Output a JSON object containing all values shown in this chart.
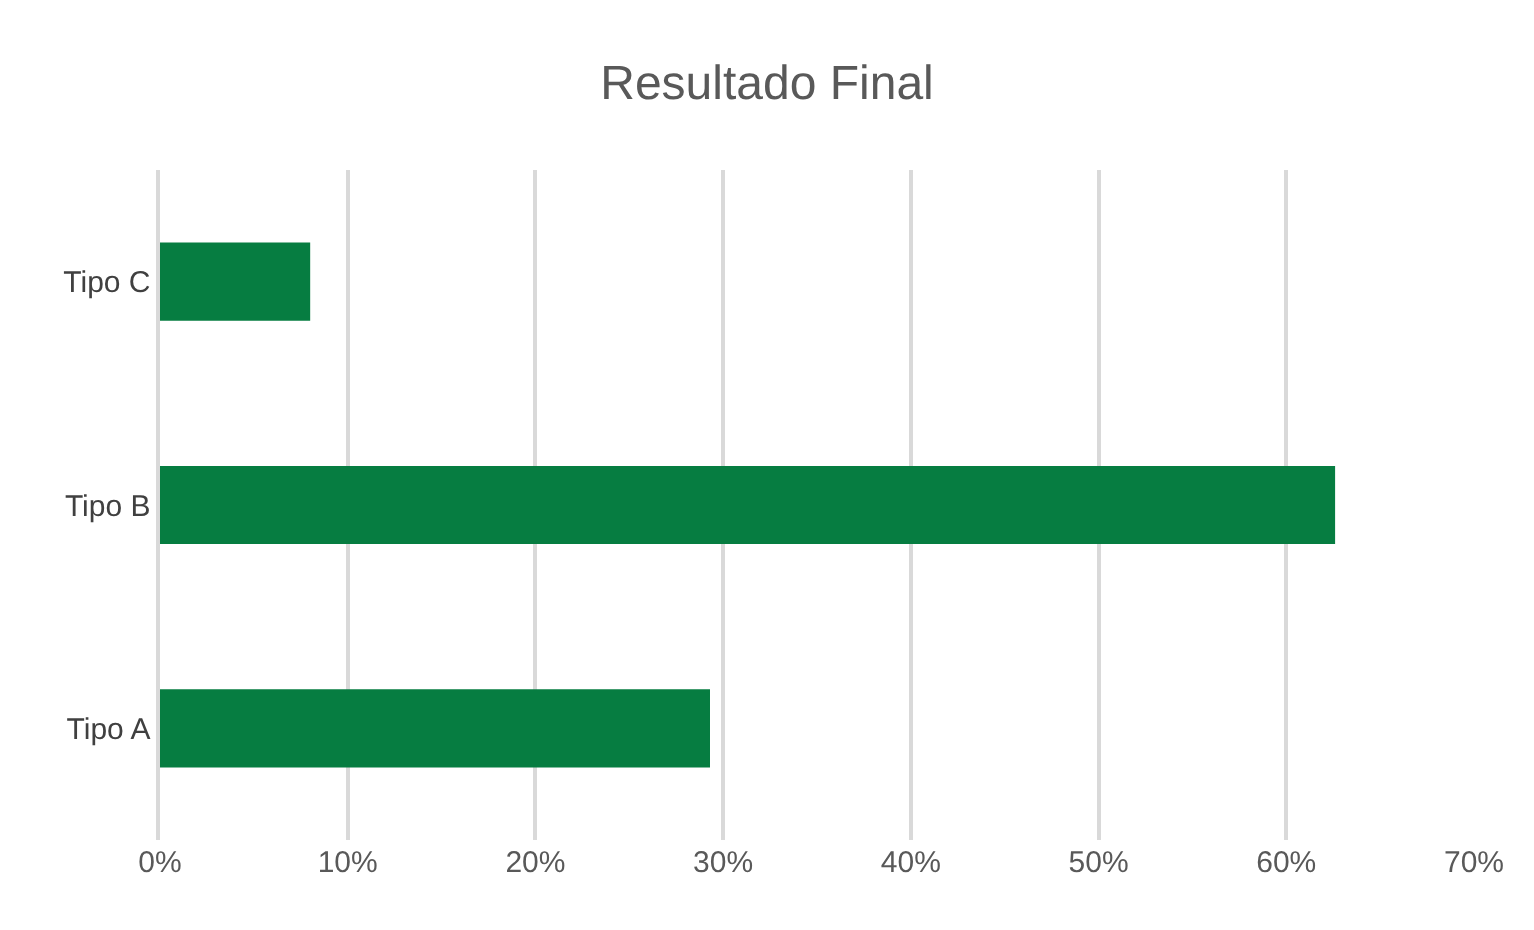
{
  "chart_data": {
    "type": "bar",
    "orientation": "horizontal",
    "title": "Resultado Final",
    "categories": [
      "Tipo C",
      "Tipo B",
      "Tipo A"
    ],
    "values": [
      8,
      62.6,
      29.3
    ],
    "color": "#067d41",
    "xlim": [
      0,
      70
    ],
    "xticks": [
      {
        "value": 0,
        "label": "0%"
      },
      {
        "value": 10,
        "label": "10%"
      },
      {
        "value": 20,
        "label": "20%"
      },
      {
        "value": 30,
        "label": "30%"
      },
      {
        "value": 40,
        "label": "40%"
      },
      {
        "value": 50,
        "label": "50%"
      },
      {
        "value": 60,
        "label": "60%"
      },
      {
        "value": 70,
        "label": "70%"
      }
    ],
    "grid": "x"
  }
}
